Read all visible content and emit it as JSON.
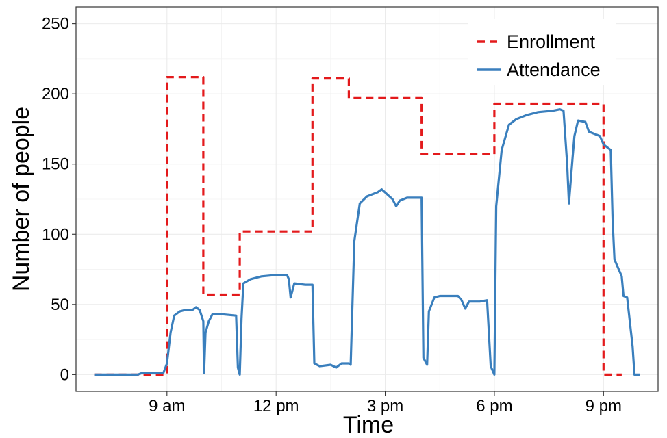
{
  "chart_data": {
    "type": "line",
    "xlabel": "Time",
    "ylabel": "Number of people",
    "x_unit": "hour",
    "xlim": [
      6.5,
      22.5
    ],
    "ylim": [
      -12,
      262
    ],
    "x_ticks": [
      {
        "value": 9,
        "label": "9 am"
      },
      {
        "value": 12,
        "label": "12 pm"
      },
      {
        "value": 15,
        "label": "3 pm"
      },
      {
        "value": 18,
        "label": "6 pm"
      },
      {
        "value": 21,
        "label": "9 pm"
      }
    ],
    "y_ticks": [
      0,
      50,
      100,
      150,
      200,
      250
    ],
    "grid": true,
    "legend_position": "top-right",
    "series": [
      {
        "name": "Enrollment",
        "style": "dashed",
        "color": "#e31a1c",
        "points": [
          [
            7.0,
            0
          ],
          [
            9.0,
            0
          ],
          [
            9.0,
            212
          ],
          [
            10.0,
            212
          ],
          [
            10.0,
            57
          ],
          [
            11.0,
            57
          ],
          [
            11.0,
            102
          ],
          [
            13.0,
            102
          ],
          [
            13.0,
            211
          ],
          [
            14.0,
            211
          ],
          [
            14.0,
            197
          ],
          [
            16.0,
            197
          ],
          [
            16.0,
            157
          ],
          [
            18.0,
            157
          ],
          [
            18.0,
            193
          ],
          [
            21.0,
            193
          ],
          [
            21.0,
            0
          ],
          [
            21.5,
            0
          ]
        ]
      },
      {
        "name": "Attendance",
        "style": "solid",
        "color": "#3a7fbd",
        "points": [
          [
            7.0,
            0
          ],
          [
            8.2,
            0
          ],
          [
            8.3,
            1
          ],
          [
            8.9,
            1
          ],
          [
            9.0,
            8
          ],
          [
            9.1,
            30
          ],
          [
            9.2,
            42
          ],
          [
            9.35,
            45
          ],
          [
            9.5,
            46
          ],
          [
            9.7,
            46
          ],
          [
            9.8,
            48
          ],
          [
            9.9,
            46
          ],
          [
            10.0,
            38
          ],
          [
            10.02,
            1
          ],
          [
            10.06,
            30
          ],
          [
            10.15,
            38
          ],
          [
            10.25,
            43
          ],
          [
            10.5,
            43
          ],
          [
            10.9,
            42
          ],
          [
            10.95,
            5
          ],
          [
            11.0,
            0
          ],
          [
            11.05,
            40
          ],
          [
            11.1,
            65
          ],
          [
            11.3,
            68
          ],
          [
            11.6,
            70
          ],
          [
            12.0,
            71
          ],
          [
            12.3,
            71
          ],
          [
            12.35,
            68
          ],
          [
            12.4,
            55
          ],
          [
            12.5,
            65
          ],
          [
            12.8,
            64
          ],
          [
            13.0,
            64
          ],
          [
            13.05,
            8
          ],
          [
            13.2,
            6
          ],
          [
            13.5,
            7
          ],
          [
            13.65,
            5
          ],
          [
            13.8,
            8
          ],
          [
            14.0,
            8
          ],
          [
            14.05,
            7
          ],
          [
            14.15,
            95
          ],
          [
            14.3,
            122
          ],
          [
            14.5,
            127
          ],
          [
            14.8,
            130
          ],
          [
            14.9,
            132
          ],
          [
            15.2,
            125
          ],
          [
            15.3,
            120
          ],
          [
            15.4,
            124
          ],
          [
            15.6,
            126
          ],
          [
            15.9,
            126
          ],
          [
            16.0,
            126
          ],
          [
            16.05,
            12
          ],
          [
            16.15,
            7
          ],
          [
            16.2,
            45
          ],
          [
            16.35,
            55
          ],
          [
            16.5,
            56
          ],
          [
            16.8,
            56
          ],
          [
            17.0,
            56
          ],
          [
            17.1,
            53
          ],
          [
            17.2,
            47
          ],
          [
            17.3,
            52
          ],
          [
            17.6,
            52
          ],
          [
            17.8,
            53
          ],
          [
            17.9,
            6
          ],
          [
            18.0,
            0
          ],
          [
            18.05,
            120
          ],
          [
            18.2,
            160
          ],
          [
            18.4,
            178
          ],
          [
            18.6,
            182
          ],
          [
            18.9,
            185
          ],
          [
            19.2,
            187
          ],
          [
            19.6,
            188
          ],
          [
            19.8,
            189
          ],
          [
            19.9,
            188
          ],
          [
            20.0,
            150
          ],
          [
            20.05,
            122
          ],
          [
            20.15,
            155
          ],
          [
            20.2,
            170
          ],
          [
            20.3,
            181
          ],
          [
            20.5,
            180
          ],
          [
            20.6,
            173
          ],
          [
            20.9,
            170
          ],
          [
            21.0,
            164
          ],
          [
            21.2,
            160
          ],
          [
            21.25,
            110
          ],
          [
            21.3,
            82
          ],
          [
            21.5,
            70
          ],
          [
            21.55,
            56
          ],
          [
            21.65,
            55
          ],
          [
            21.8,
            20
          ],
          [
            21.85,
            0
          ],
          [
            22.0,
            0
          ]
        ]
      }
    ]
  }
}
